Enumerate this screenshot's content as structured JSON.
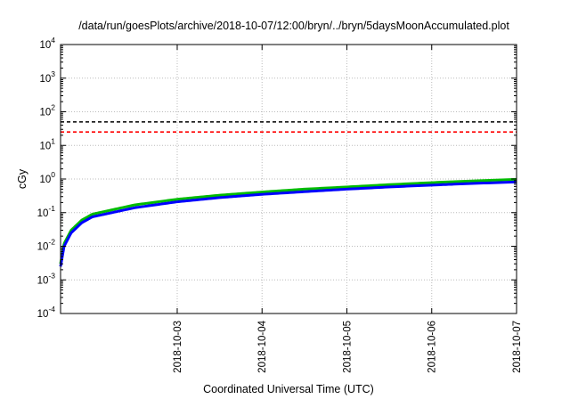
{
  "chart_data": {
    "type": "line",
    "title": "/data/run/goesPlots/archive/2018-10-07/12:00/bryn/../bryn/5daysMoonAccumulated.plot",
    "xlabel": "Coordinated Universal Time (UTC)",
    "ylabel": "cGy",
    "y_scale": "log",
    "ylim_exponents": [
      -4,
      4
    ],
    "y_tick_labels": [
      {
        "base": "10",
        "exp": "-4"
      },
      {
        "base": "10",
        "exp": "-3"
      },
      {
        "base": "10",
        "exp": "-2"
      },
      {
        "base": "10",
        "exp": "-1"
      },
      {
        "base": "10",
        "exp": "0"
      },
      {
        "base": "10",
        "exp": "1"
      },
      {
        "base": "10",
        "exp": "2"
      },
      {
        "base": "10",
        "exp": "3"
      },
      {
        "base": "10",
        "exp": "4"
      }
    ],
    "x_range": [
      "2018-10-02T03:00",
      "2018-10-07T12:00"
    ],
    "x_ticks": [
      "2018-10-03",
      "2018-10-04",
      "2018-10-05",
      "2018-10-06",
      "2018-10-07"
    ],
    "grid": true,
    "reference_lines": [
      {
        "y": 50,
        "color": "#000000",
        "style": "dashed"
      },
      {
        "y": 25,
        "color": "#ff0000",
        "style": "dashed"
      }
    ],
    "series": [
      {
        "color": "#00bb00",
        "x": [
          "2018-10-02T03:00",
          "2018-10-02T04:00",
          "2018-10-02T06:00",
          "2018-10-02T09:00",
          "2018-10-02T12:00",
          "2018-10-03T00:00",
          "2018-10-03T12:00",
          "2018-10-04T00:00",
          "2018-10-04T12:00",
          "2018-10-05T00:00",
          "2018-10-05T12:00",
          "2018-10-06T00:00",
          "2018-10-06T12:00",
          "2018-10-07T00:00",
          "2018-10-07T12:00"
        ],
        "y": [
          0.003,
          0.012,
          0.03,
          0.06,
          0.09,
          0.17,
          0.25,
          0.33,
          0.41,
          0.5,
          0.58,
          0.68,
          0.78,
          0.88,
          0.98
        ]
      },
      {
        "color": "#0000ff",
        "x": [
          "2018-10-02T03:00",
          "2018-10-02T04:00",
          "2018-10-02T06:00",
          "2018-10-02T09:00",
          "2018-10-02T12:00",
          "2018-10-03T00:00",
          "2018-10-03T12:00",
          "2018-10-04T00:00",
          "2018-10-04T12:00",
          "2018-10-05T00:00",
          "2018-10-05T12:00",
          "2018-10-06T00:00",
          "2018-10-06T12:00",
          "2018-10-07T00:00",
          "2018-10-07T12:00"
        ],
        "y": [
          0.0025,
          0.01,
          0.025,
          0.05,
          0.075,
          0.14,
          0.21,
          0.28,
          0.35,
          0.42,
          0.5,
          0.58,
          0.66,
          0.74,
          0.82
        ]
      }
    ]
  }
}
